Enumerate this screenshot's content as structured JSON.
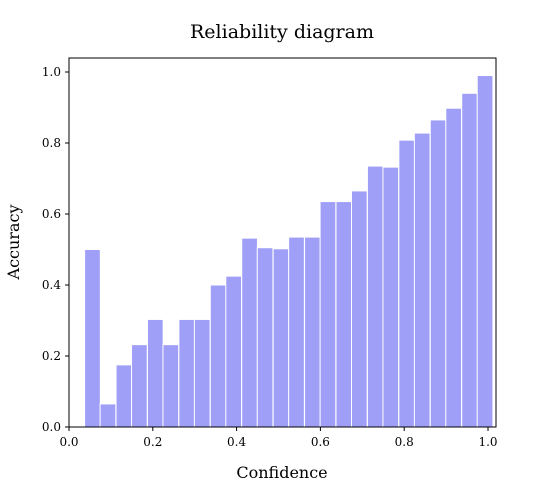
{
  "chart_data": {
    "type": "bar",
    "title": "Reliability diagram",
    "xlabel": "Confidence",
    "ylabel": "Accuracy",
    "xlim": [
      0.0,
      1.0
    ],
    "ylim": [
      0.0,
      1.0
    ],
    "grid": false,
    "bar_color": "#9f9ff7",
    "bin_width": 0.0375,
    "x": [
      0.056,
      0.093,
      0.131,
      0.168,
      0.206,
      0.243,
      0.281,
      0.318,
      0.356,
      0.393,
      0.431,
      0.468,
      0.506,
      0.543,
      0.581,
      0.618,
      0.656,
      0.693,
      0.731,
      0.768,
      0.806,
      0.843,
      0.881,
      0.918,
      0.956,
      0.993
    ],
    "values": [
      0.5,
      0.065,
      0.175,
      0.232,
      0.303,
      0.232,
      0.303,
      0.303,
      0.4,
      0.425,
      0.532,
      0.505,
      0.502,
      0.535,
      0.535,
      0.635,
      0.635,
      0.665,
      0.735,
      0.732,
      0.808,
      0.828,
      0.865,
      0.898,
      0.94,
      0.99
    ],
    "xticks": [
      "0.0",
      "0.2",
      "0.4",
      "0.6",
      "0.8",
      "1.0"
    ],
    "yticks": [
      "0.0",
      "0.2",
      "0.4",
      "0.6",
      "0.8",
      "1.0"
    ]
  }
}
